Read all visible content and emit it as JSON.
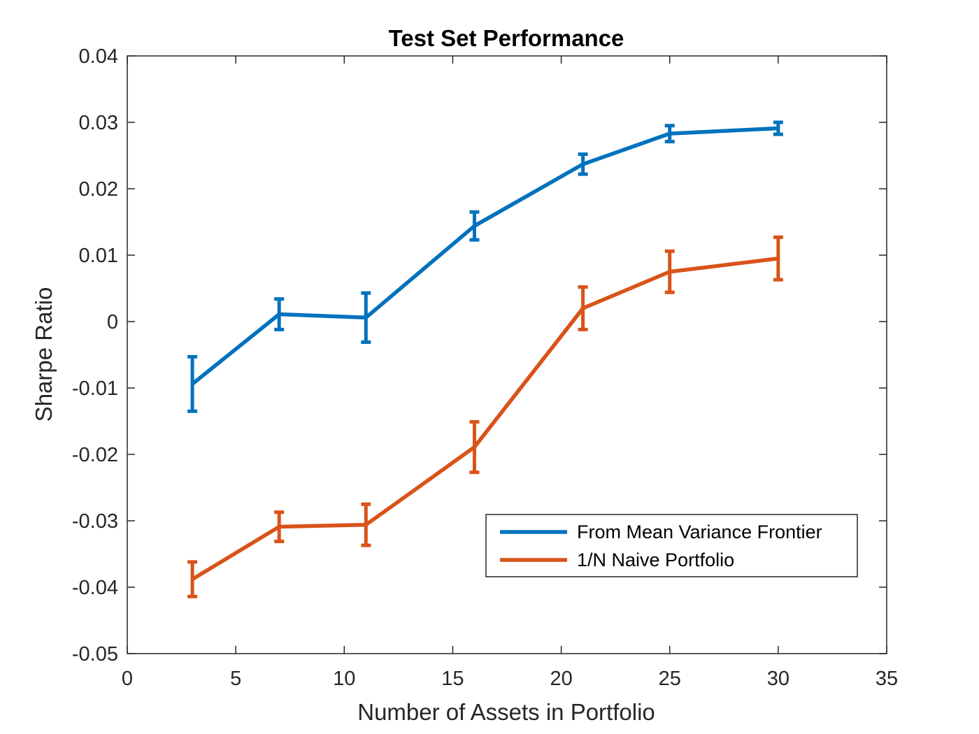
{
  "chart_data": {
    "type": "line",
    "title": "Test Set Performance",
    "xlabel": "Number of Assets in Portfolio",
    "ylabel": "Sharpe Ratio",
    "xlim": [
      0,
      35
    ],
    "ylim": [
      -0.05,
      0.04
    ],
    "xticks": [
      0,
      5,
      10,
      15,
      20,
      25,
      30,
      35
    ],
    "xtick_labels": [
      "0",
      "5",
      "10",
      "15",
      "20",
      "25",
      "30",
      "35"
    ],
    "yticks": [
      0.04,
      0.03,
      0.02,
      0.01,
      0,
      -0.01,
      -0.02,
      -0.03,
      -0.04,
      -0.05
    ],
    "ytick_labels": [
      "0.04",
      "0.03",
      "0.02",
      "0.01",
      "0",
      "-0.01",
      "-0.02",
      "-0.03",
      "-0.04",
      "-0.05"
    ],
    "grid": false,
    "legend_position": "bottom-right",
    "x": [
      3,
      7,
      11,
      16,
      21,
      25,
      30
    ],
    "series": [
      {
        "name": "From Mean Variance Frontier",
        "color": "#0072BD",
        "values": [
          -0.0094,
          0.0011,
          0.0006,
          0.0144,
          0.0237,
          0.0283,
          0.0291
        ],
        "errors": [
          0.0041,
          0.0023,
          0.0037,
          0.0021,
          0.0015,
          0.0012,
          0.0009
        ]
      },
      {
        "name": "1/N Naive Portfolio",
        "color": "#D95319",
        "values": [
          -0.0388,
          -0.0309,
          -0.0306,
          -0.0189,
          0.002,
          0.0075,
          0.0095
        ],
        "errors": [
          0.0026,
          0.0022,
          0.0031,
          0.0038,
          0.0032,
          0.0031,
          0.0032
        ]
      }
    ]
  }
}
